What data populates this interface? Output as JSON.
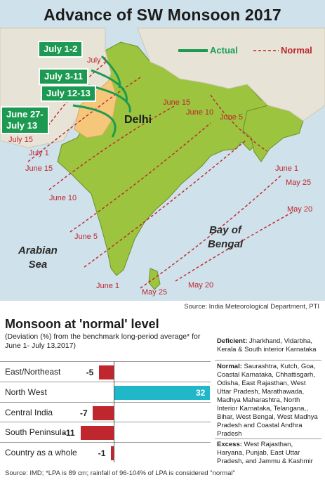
{
  "title": "Advance of SW Monsoon 2017",
  "legend": {
    "actual": "Actual",
    "normal": "Normal"
  },
  "actual_tags": [
    "July 1-2",
    "July 3-11",
    "July 12-13",
    "June 27-\nJuly 13"
  ],
  "normal_labels": [
    "July 1",
    "June 15",
    "June 10",
    "June 5",
    "July 15",
    "July 1",
    "June 15",
    "June 1",
    "May 25",
    "May 20",
    "June 10",
    "June 5",
    "June 1",
    "May 25",
    "May 20"
  ],
  "city": "Delhi",
  "seas": {
    "arabian": "Arabian\nSea",
    "bengal": "Bay of\nBengal"
  },
  "colors": {
    "actual": "#1c9a52",
    "normal": "#c0262d",
    "land": "#9cc43f",
    "sea": "#cfe1ea",
    "highlight": "#f5c77a",
    "positive_bar": "#20b7c8",
    "negative_bar": "#c0262d"
  },
  "map_source": "Source: India Meteorological Department, PTI",
  "section_title": "Monsoon at 'normal' level",
  "section_subtitle": "(Deviation (%) from the benchmark long-period average* for June 1- July 13,2017)",
  "chart_data": {
    "type": "bar",
    "orientation": "horizontal",
    "categories": [
      "East/Northeast",
      "North West",
      "Central India",
      "South Peninsula",
      "Country as a whole"
    ],
    "values": [
      -5,
      32,
      -7,
      -11,
      -1
    ],
    "xlim": [
      -11,
      32
    ]
  },
  "side_notes": [
    {
      "label": "Deficient:",
      "text": " Jharkhand, Vidarbha, Kerala & South interior Karnataka"
    },
    {
      "label": "Normal:",
      "text": " Saurashtra, Kutch, Goa, Coastal Karnataka, Chhattisgarh, Odisha, East Rajasthan, West Uttar Pradesh, Marathawada, Madhya Maharashtra, North Interior Karnataka, Telangana,, Bihar, West Bengal, West Madhya Pradesh and Coastal Andhra Pradesh"
    },
    {
      "label": "Excess:",
      "text": " West Rajasthan, Haryana, Punjab, East Uttar Pradesh, and Jammu & Kashmir"
    }
  ],
  "footnote": "Source: IMD; *LPA is 89 cm; rainfall of 96-104% of LPA is considered \"normal\""
}
